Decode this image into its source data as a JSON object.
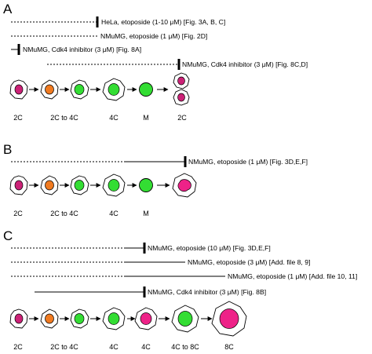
{
  "colors": {
    "line": "#000000",
    "g1_cell": "#cc2277",
    "early_s_cell": "#f07a20",
    "s_g2_cell": "#33dd33",
    "mitosis_cell": "#33dd33",
    "polyploid_cell": "#ee2288",
    "cell_outline": "#000000",
    "background": "#ffffff"
  },
  "panels": [
    {
      "letter": "A",
      "treatments": [
        {
          "label": "HeLa, etoposide (1-10 μM) [Fig. 3A, B, C]",
          "block": true
        },
        {
          "label": "NMuMG, etoposide (1 μM) [Fig. 2D]",
          "block": false
        },
        {
          "label": "NMuMG, Cdk4 inhibitor (3 μM) [Fig. 8A]",
          "block": true
        },
        {
          "label": "NMuMG, Cdk4 inhibitor (3 μM) [Fig. 8C,D]",
          "block": true
        }
      ],
      "stage_labels": [
        "2C",
        "2C to 4C",
        "4C",
        "M",
        "2C"
      ],
      "cells": [
        "g1",
        "early-s",
        "s-phase",
        "g2",
        "mitosis",
        "daughter-pair"
      ]
    },
    {
      "letter": "B",
      "treatments": [
        {
          "label": "NMuMG, etoposide (1 μM) [Fig. 3D,E,F]",
          "block": true
        }
      ],
      "stage_labels": [
        "2C",
        "2C to 4C",
        "4C",
        "M"
      ],
      "cells": [
        "g1",
        "early-s",
        "s-phase",
        "g2",
        "mitosis",
        "failed-division"
      ]
    },
    {
      "letter": "C",
      "treatments": [
        {
          "label": "NMuMG, etoposide (10 μM) [Fig. 3D,E,F]",
          "block": true
        },
        {
          "label": "NMuMG, etoposide (3 μM) [Add. file 8, 9]",
          "block": false
        },
        {
          "label": "NMuMG, etoposide (1 μM) [Add. file 10, 11]",
          "block": false
        },
        {
          "label": "NMuMG, Cdk4 inhibitor (3 μM) [Fig. 8B]",
          "block": true
        }
      ],
      "stage_labels": [
        "2C",
        "2C to 4C",
        "4C",
        "4C",
        "4C to 8C",
        "8C"
      ],
      "cells": [
        "g1",
        "early-s",
        "s-phase",
        "g2",
        "g2-pink",
        "rereplicating",
        "polyploid"
      ]
    }
  ]
}
